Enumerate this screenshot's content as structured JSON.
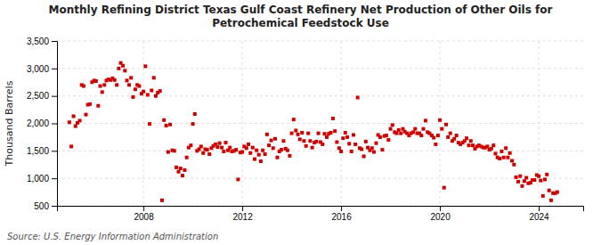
{
  "chart_data": {
    "type": "scatter",
    "title": "Monthly Refining District Texas Gulf Coast Refinery Net Production of Other Oils for\nPetrochemical Feedstock Use",
    "ylabel": "Thousand Barrels",
    "source": "Source: U.S. Energy Information Administration",
    "color": "#cc0000",
    "marker": "square",
    "grid": true,
    "xlim": [
      2004.5,
      2025.8
    ],
    "xticks": [
      2008,
      2012,
      2016,
      2020,
      2024
    ],
    "ylim": [
      500,
      3500
    ],
    "yticks": [
      500,
      {
        "value": 1000,
        "label": "1,000"
      },
      {
        "value": 1500,
        "label": "1,500"
      },
      {
        "value": 2000,
        "label": "2,000"
      },
      {
        "value": 2500,
        "label": "2,500"
      },
      {
        "value": 3000,
        "label": "3,000"
      },
      {
        "value": 3500,
        "label": "3,500"
      }
    ],
    "x": [
      2005.0,
      2005.08,
      2005.17,
      2005.25,
      2005.33,
      2005.42,
      2005.5,
      2005.58,
      2005.67,
      2005.75,
      2005.83,
      2005.92,
      2006.0,
      2006.08,
      2006.17,
      2006.25,
      2006.33,
      2006.42,
      2006.5,
      2006.58,
      2006.67,
      2006.75,
      2006.83,
      2006.92,
      2007.0,
      2007.08,
      2007.17,
      2007.25,
      2007.33,
      2007.42,
      2007.5,
      2007.58,
      2007.67,
      2007.75,
      2007.83,
      2007.92,
      2008.0,
      2008.08,
      2008.17,
      2008.25,
      2008.33,
      2008.42,
      2008.5,
      2008.58,
      2008.67,
      2008.75,
      2008.83,
      2008.92,
      2009.0,
      2009.08,
      2009.17,
      2009.25,
      2009.33,
      2009.42,
      2009.5,
      2009.58,
      2009.67,
      2009.75,
      2009.83,
      2009.92,
      2010.0,
      2010.08,
      2010.17,
      2010.25,
      2010.33,
      2010.42,
      2010.5,
      2010.58,
      2010.67,
      2010.75,
      2010.83,
      2010.92,
      2011.0,
      2011.08,
      2011.17,
      2011.25,
      2011.33,
      2011.42,
      2011.5,
      2011.58,
      2011.67,
      2011.75,
      2011.83,
      2011.92,
      2012.0,
      2012.08,
      2012.17,
      2012.25,
      2012.33,
      2012.42,
      2012.5,
      2012.58,
      2012.67,
      2012.75,
      2012.83,
      2012.92,
      2013.0,
      2013.08,
      2013.17,
      2013.25,
      2013.33,
      2013.42,
      2013.5,
      2013.58,
      2013.67,
      2013.75,
      2013.83,
      2013.92,
      2014.0,
      2014.08,
      2014.17,
      2014.25,
      2014.33,
      2014.42,
      2014.5,
      2014.58,
      2014.67,
      2014.75,
      2014.83,
      2014.92,
      2015.0,
      2015.08,
      2015.17,
      2015.25,
      2015.33,
      2015.42,
      2015.5,
      2015.58,
      2015.67,
      2015.75,
      2015.83,
      2015.92,
      2016.0,
      2016.08,
      2016.17,
      2016.25,
      2016.33,
      2016.42,
      2016.5,
      2016.58,
      2016.67,
      2016.75,
      2016.83,
      2016.92,
      2017.0,
      2017.08,
      2017.17,
      2017.25,
      2017.33,
      2017.42,
      2017.5,
      2017.58,
      2017.67,
      2017.75,
      2017.83,
      2017.92,
      2018.0,
      2018.08,
      2018.17,
      2018.25,
      2018.33,
      2018.42,
      2018.5,
      2018.58,
      2018.67,
      2018.75,
      2018.83,
      2018.92,
      2019.0,
      2019.08,
      2019.17,
      2019.25,
      2019.33,
      2019.42,
      2019.5,
      2019.58,
      2019.67,
      2019.75,
      2019.83,
      2019.92,
      2020.0,
      2020.08,
      2020.17,
      2020.25,
      2020.33,
      2020.42,
      2020.5,
      2020.58,
      2020.67,
      2020.75,
      2020.83,
      2020.92,
      2021.0,
      2021.08,
      2021.17,
      2021.25,
      2021.33,
      2021.42,
      2021.5,
      2021.58,
      2021.67,
      2021.75,
      2021.83,
      2021.92,
      2022.0,
      2022.08,
      2022.17,
      2022.25,
      2022.33,
      2022.42,
      2022.5,
      2022.58,
      2022.67,
      2022.75,
      2022.83,
      2022.92,
      2023.0,
      2023.08,
      2023.17,
      2023.25,
      2023.33,
      2023.42,
      2023.5,
      2023.58,
      2023.67,
      2023.75,
      2023.83,
      2023.92,
      2024.0,
      2024.08,
      2024.17,
      2024.25,
      2024.33,
      2024.42,
      2024.5,
      2024.58,
      2024.67,
      2024.75
    ],
    "values": [
      2020,
      1580,
      2130,
      1950,
      2010,
      2050,
      2700,
      2680,
      2160,
      2340,
      2350,
      2750,
      2780,
      2770,
      2320,
      2680,
      2570,
      2700,
      2780,
      2800,
      2790,
      2820,
      2790,
      2700,
      3000,
      3100,
      3050,
      2960,
      2780,
      2700,
      2830,
      2480,
      2620,
      2700,
      2680,
      2540,
      2580,
      3040,
      2520,
      1990,
      2600,
      2830,
      2500,
      2560,
      2590,
      600,
      2060,
      1960,
      1480,
      1980,
      1510,
      1500,
      1200,
      1120,
      1180,
      1050,
      1150,
      1380,
      1560,
      1600,
      1990,
      2170,
      1500,
      1530,
      1580,
      1460,
      1530,
      1520,
      1440,
      1550,
      1590,
      1620,
      1570,
      1640,
      1560,
      1490,
      1650,
      1510,
      1560,
      1490,
      1500,
      1520,
      980,
      1470,
      1480,
      1580,
      1550,
      1620,
      1460,
      1560,
      1350,
      1510,
      1430,
      1310,
      1510,
      1440,
      1800,
      1600,
      1690,
      1550,
      1720,
      1380,
      1490,
      1520,
      1680,
      1540,
      1510,
      1410,
      1820,
      2070,
      1870,
      1800,
      1710,
      1830,
      1680,
      1590,
      1820,
      1680,
      1560,
      1650,
      1670,
      1820,
      1660,
      1620,
      1810,
      1750,
      1810,
      1830,
      2090,
      1860,
      1660,
      1550,
      1490,
      1730,
      1830,
      1750,
      1630,
      1490,
      1790,
      1620,
      2470,
      1550,
      1530,
      1400,
      1670,
      1560,
      1510,
      1550,
      1480,
      1640,
      1790,
      1750,
      1520,
      1770,
      1780,
      1700,
      1900,
      1970,
      1840,
      1820,
      1880,
      1820,
      1900,
      1850,
      1820,
      1780,
      1820,
      1840,
      1900,
      1820,
      1820,
      1780,
      1900,
      2050,
      1840,
      1820,
      1780,
      1740,
      1620,
      1780,
      2060,
      1900,
      830,
      1980,
      1750,
      1820,
      1680,
      1720,
      1780,
      1650,
      1620,
      1650,
      1680,
      1730,
      1600,
      1680,
      1600,
      1540,
      1580,
      1600,
      1580,
      1560,
      1560,
      1580,
      1520,
      1540,
      1600,
      1450,
      1380,
      1360,
      1490,
      1380,
      1550,
      1380,
      1460,
      1320,
      1250,
      1020,
      940,
      1040,
      860,
      950,
      1010,
      910,
      920,
      970,
      970,
      1060,
      1040,
      960,
      680,
      980,
      1070,
      780,
      600,
      730,
      730,
      750
    ]
  }
}
